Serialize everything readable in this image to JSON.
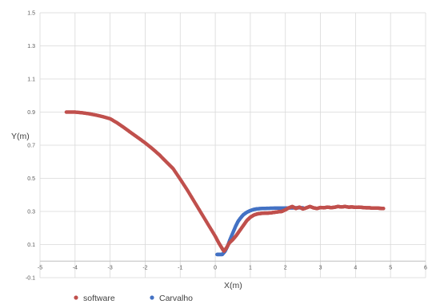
{
  "chart_data": {
    "type": "scatter",
    "title": "",
    "xlabel": "X(m)",
    "ylabel": "Y(m)",
    "xlim": [
      -5,
      6
    ],
    "ylim": [
      -0.1,
      1.5
    ],
    "x_ticks": [
      -5,
      -4,
      -3,
      -2,
      -1,
      0,
      1,
      2,
      3,
      4,
      5,
      6
    ],
    "x_tick_labels": [
      "-5",
      "-4",
      "-3",
      "-2",
      "-1",
      "0",
      "1",
      "2",
      "3",
      "4",
      "5",
      "6"
    ],
    "y_ticks": [
      -0.1,
      0.1,
      0.3,
      0.5,
      0.7,
      0.9,
      1.1,
      1.3,
      1.5
    ],
    "y_tick_labels": [
      "-0.1",
      "0.1",
      "0.3",
      "0.5",
      "0.7",
      "0.9",
      "1.1",
      "1.3",
      "1.5"
    ],
    "grid": true,
    "legend_position": "bottom",
    "series": [
      {
        "name": "Carvalho",
        "color": "#4472c4",
        "points": [
          [
            0.05,
            0.04
          ],
          [
            0.12,
            0.04
          ],
          [
            0.2,
            0.04
          ],
          [
            0.28,
            0.06
          ],
          [
            0.35,
            0.09
          ],
          [
            0.42,
            0.13
          ],
          [
            0.5,
            0.17
          ],
          [
            0.58,
            0.21
          ],
          [
            0.65,
            0.24
          ],
          [
            0.72,
            0.26
          ],
          [
            0.8,
            0.28
          ],
          [
            0.9,
            0.295
          ],
          [
            1.0,
            0.305
          ],
          [
            1.1,
            0.312
          ],
          [
            1.2,
            0.316
          ],
          [
            1.35,
            0.318
          ],
          [
            1.5,
            0.319
          ],
          [
            1.7,
            0.32
          ],
          [
            1.9,
            0.32
          ],
          [
            2.1,
            0.321
          ],
          [
            2.3,
            0.322
          ],
          [
            2.5,
            0.322
          ]
        ]
      },
      {
        "name": "software",
        "color": "#c0504d",
        "points": [
          [
            -4.25,
            0.9
          ],
          [
            -4.0,
            0.9
          ],
          [
            -3.8,
            0.896
          ],
          [
            -3.6,
            0.89
          ],
          [
            -3.4,
            0.882
          ],
          [
            -3.2,
            0.872
          ],
          [
            -3.0,
            0.86
          ],
          [
            -2.8,
            0.835
          ],
          [
            -2.6,
            0.806
          ],
          [
            -2.4,
            0.775
          ],
          [
            -2.2,
            0.745
          ],
          [
            -2.0,
            0.714
          ],
          [
            -1.8,
            0.68
          ],
          [
            -1.6,
            0.643
          ],
          [
            -1.4,
            0.6
          ],
          [
            -1.2,
            0.558
          ],
          [
            -1.0,
            0.495
          ],
          [
            -0.8,
            0.43
          ],
          [
            -0.6,
            0.36
          ],
          [
            -0.4,
            0.29
          ],
          [
            -0.2,
            0.22
          ],
          [
            0.0,
            0.15
          ],
          [
            0.1,
            0.11
          ],
          [
            0.2,
            0.075
          ],
          [
            0.25,
            0.06
          ],
          [
            0.32,
            0.08
          ],
          [
            0.4,
            0.11
          ],
          [
            0.5,
            0.13
          ],
          [
            0.6,
            0.155
          ],
          [
            0.7,
            0.185
          ],
          [
            0.8,
            0.215
          ],
          [
            0.9,
            0.245
          ],
          [
            1.0,
            0.265
          ],
          [
            1.1,
            0.278
          ],
          [
            1.2,
            0.285
          ],
          [
            1.3,
            0.288
          ],
          [
            1.4,
            0.29
          ],
          [
            1.5,
            0.29
          ],
          [
            1.6,
            0.292
          ],
          [
            1.7,
            0.295
          ],
          [
            1.8,
            0.298
          ],
          [
            1.9,
            0.3
          ],
          [
            2.0,
            0.31
          ],
          [
            2.1,
            0.322
          ],
          [
            2.2,
            0.33
          ],
          [
            2.3,
            0.318
          ],
          [
            2.4,
            0.326
          ],
          [
            2.5,
            0.315
          ],
          [
            2.6,
            0.322
          ],
          [
            2.7,
            0.33
          ],
          [
            2.8,
            0.322
          ],
          [
            2.9,
            0.318
          ],
          [
            3.0,
            0.324
          ],
          [
            3.1,
            0.322
          ],
          [
            3.2,
            0.326
          ],
          [
            3.3,
            0.323
          ],
          [
            3.4,
            0.325
          ],
          [
            3.5,
            0.33
          ],
          [
            3.6,
            0.327
          ],
          [
            3.7,
            0.33
          ],
          [
            3.8,
            0.326
          ],
          [
            3.9,
            0.327
          ],
          [
            4.0,
            0.325
          ],
          [
            4.1,
            0.326
          ],
          [
            4.2,
            0.324
          ],
          [
            4.3,
            0.322
          ],
          [
            4.4,
            0.322
          ],
          [
            4.5,
            0.32
          ],
          [
            4.6,
            0.321
          ],
          [
            4.7,
            0.319
          ],
          [
            4.8,
            0.318
          ]
        ]
      }
    ],
    "legend": [
      {
        "name": "software",
        "color": "#c0504d"
      },
      {
        "name": "Carvalho",
        "color": "#4472c4"
      }
    ]
  }
}
